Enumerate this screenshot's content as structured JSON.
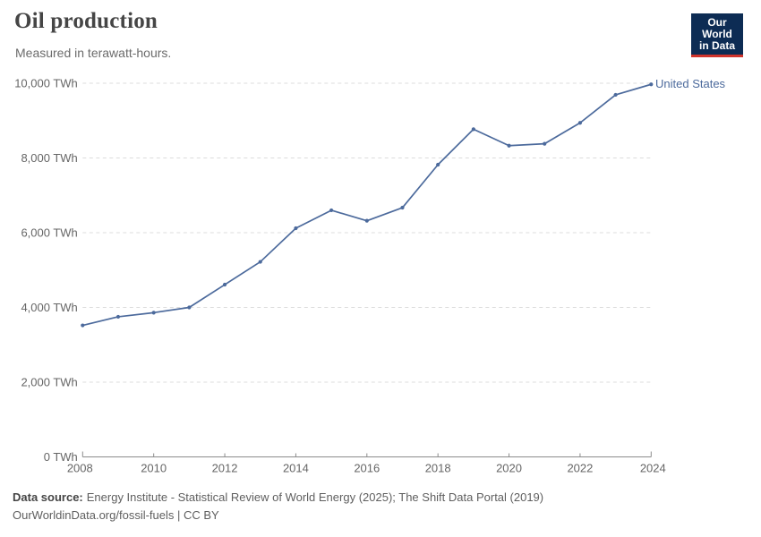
{
  "header": {
    "title": "Oil production",
    "subtitle": "Measured in terawatt-hours.",
    "logo": {
      "line1": "Our World",
      "line2": "in Data",
      "bg_color": "#0d2c54",
      "bar_color": "#d0342c"
    }
  },
  "chart_data": {
    "type": "line",
    "title": "Oil production",
    "subtitle": "Measured in terawatt-hours.",
    "unit": "TWh",
    "xlabel": "",
    "ylabel": "",
    "x": [
      2008,
      2009,
      2010,
      2011,
      2012,
      2013,
      2014,
      2015,
      2016,
      2017,
      2018,
      2019,
      2020,
      2021,
      2022,
      2023,
      2024
    ],
    "series": [
      {
        "name": "United States",
        "values": [
          3520,
          3750,
          3860,
          4000,
          4610,
          5220,
          6120,
          6600,
          6320,
          6670,
          7820,
          8770,
          8330,
          8380,
          8940,
          9690,
          9970
        ]
      }
    ],
    "ylim": [
      0,
      10000
    ],
    "xlim": [
      2008,
      2024
    ],
    "yticks": [
      {
        "value": 0,
        "label": "0 TWh"
      },
      {
        "value": 2000,
        "label": "2,000 TWh"
      },
      {
        "value": 4000,
        "label": "4,000 TWh"
      },
      {
        "value": 6000,
        "label": "6,000 TWh"
      },
      {
        "value": 8000,
        "label": "8,000 TWh"
      },
      {
        "value": 10000,
        "label": "10,000 TWh"
      }
    ],
    "xticks": [
      2008,
      2010,
      2012,
      2014,
      2016,
      2018,
      2020,
      2022,
      2024
    ],
    "grid": "horizontal-dashed",
    "legend": "entity-label-right-of-line",
    "line_color": "#4c6a9c"
  },
  "footer": {
    "source_label": "Data source:",
    "source_rest": "Energy Institute - Statistical Review of World Energy (2025); The Shift Data Portal (2019)",
    "license_text": "OurWorldinData.org/fossil-fuels | CC BY"
  }
}
